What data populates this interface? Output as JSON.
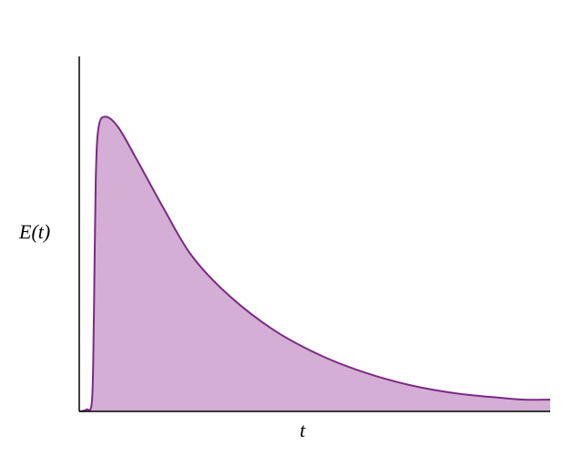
{
  "chart_data": {
    "type": "area",
    "title": "",
    "xlabel": "t",
    "ylabel": "E(t)",
    "xlim": [
      0,
      10
    ],
    "ylim": [
      0,
      1
    ],
    "grid": false,
    "ticks": false,
    "colors": {
      "fill": "#d4aed4",
      "line": "#7b2a86",
      "axis": "#000000"
    },
    "series": [
      {
        "x": [
          0,
          0.15,
          0.27,
          0.31,
          0.35,
          0.41,
          0.56,
          0.83,
          1.22,
          1.8,
          2.38,
          3.15,
          4.12,
          5.09,
          6.05,
          7.02,
          7.99,
          8.96,
          9.44,
          10
        ],
        "y": [
          0,
          0.005,
          0.03,
          0.26,
          0.65,
          0.8,
          0.83,
          0.8,
          0.71,
          0.57,
          0.44,
          0.33,
          0.23,
          0.16,
          0.11,
          0.074,
          0.051,
          0.038,
          0.033,
          0.033
        ]
      }
    ]
  }
}
